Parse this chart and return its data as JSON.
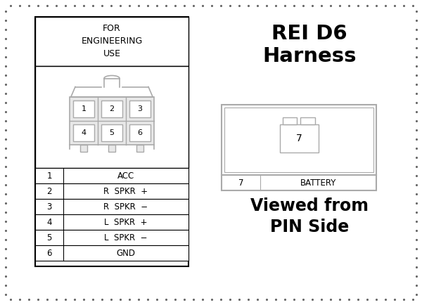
{
  "bg_color": "#ffffff",
  "border_dot_color": "#666666",
  "title_right": "REI D6\nHarness",
  "subtitle_right": "Viewed from\nPIN Side",
  "left_header": "FOR\nENGINEERING\nUSE",
  "pin_labels_left": [
    "1",
    "2",
    "3",
    "4",
    "5",
    "6"
  ],
  "pin_descriptions": [
    "ACC",
    "R  SPKR  +",
    "R  SPKR  −",
    "L  SPKR  +",
    "L  SPKR  −",
    "GND"
  ],
  "connector_pins_top": [
    "1",
    "2",
    "3"
  ],
  "connector_pins_bottom": [
    "4",
    "5",
    "6"
  ],
  "right_pin_num": "7",
  "right_pin_label": "BATTERY",
  "text_color": "#000000",
  "line_color": "#000000",
  "gray_color": "#aaaaaa"
}
